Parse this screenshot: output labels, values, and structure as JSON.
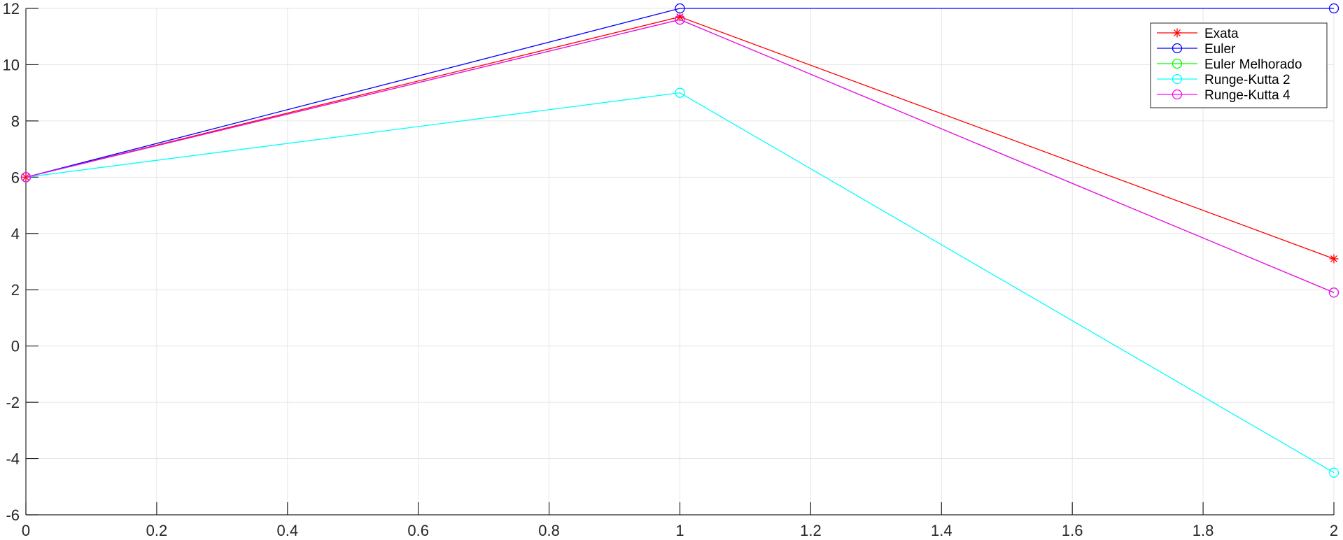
{
  "chart_data": {
    "type": "line",
    "title": "",
    "xlabel": "",
    "ylabel": "",
    "xlim": [
      0,
      2
    ],
    "ylim": [
      -6,
      12
    ],
    "x_ticks": [
      0,
      0.2,
      0.4,
      0.6,
      0.8,
      1,
      1.2,
      1.4,
      1.6,
      1.8,
      2
    ],
    "x_tick_labels": [
      "0",
      "0.2",
      "0.4",
      "0.6",
      "0.8",
      "1",
      "1.2",
      "1.4",
      "1.6",
      "1.8",
      "2"
    ],
    "y_ticks": [
      -6,
      -4,
      -2,
      0,
      2,
      4,
      6,
      8,
      10,
      12
    ],
    "y_tick_labels": [
      "-6",
      "-4",
      "-2",
      "0",
      "2",
      "4",
      "6",
      "8",
      "10",
      "12"
    ],
    "grid": true,
    "legend_position": "top-right",
    "x": [
      0,
      1,
      2
    ],
    "series": [
      {
        "name": "Exata",
        "values": [
          6,
          11.7,
          3.1
        ],
        "color": "#ff0000",
        "marker": "asterisk"
      },
      {
        "name": "Euler",
        "values": [
          6,
          12,
          12
        ],
        "color": "#0000ff",
        "marker": "circle"
      },
      {
        "name": "Euler Melhorado",
        "values": [
          6,
          11.6,
          1.9
        ],
        "color": "#00ff00",
        "marker": "circle"
      },
      {
        "name": "Runge-Kutta 2",
        "values": [
          6,
          9,
          -4.5
        ],
        "color": "#00ffff",
        "marker": "circle"
      },
      {
        "name": "Runge-Kutta 4",
        "values": [
          6,
          11.6,
          1.9
        ],
        "color": "#ff00ff",
        "marker": "circle"
      }
    ]
  }
}
